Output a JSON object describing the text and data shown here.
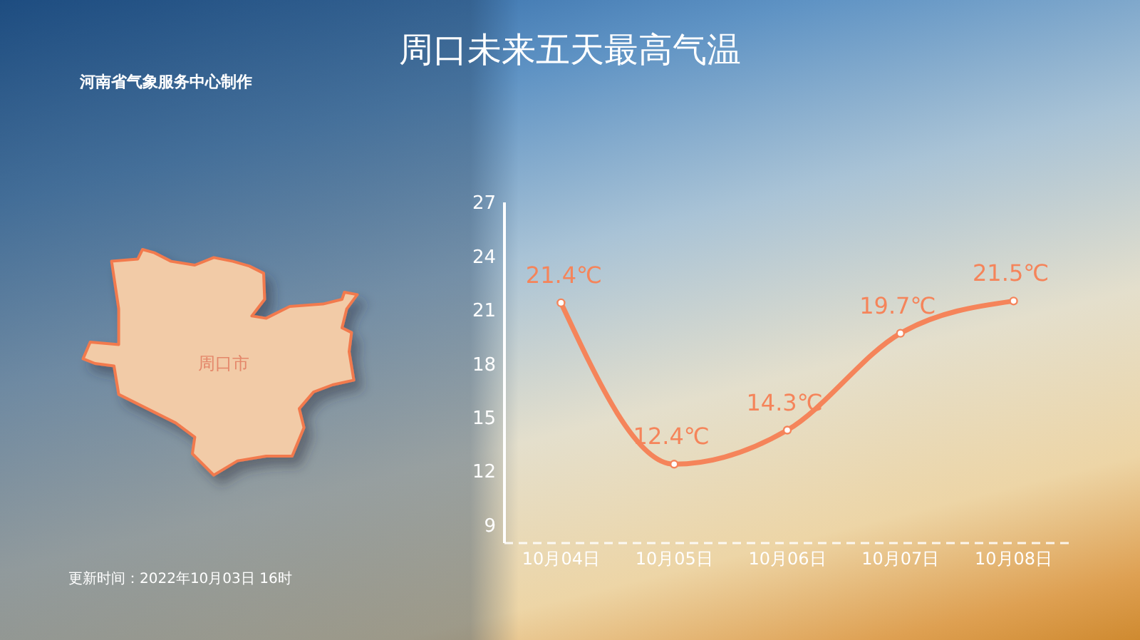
{
  "chart_data": {
    "type": "line",
    "title": "周口未来五天最高气温",
    "annotations": [
      "河南省气象服务中心制作",
      "更新时间：2022年10月03日 16时",
      "周口市"
    ],
    "categories": [
      "10月04日",
      "10月05日",
      "10月06日",
      "10月07日",
      "10月08日"
    ],
    "values": [
      21.4,
      12.4,
      14.3,
      19.7,
      21.5
    ],
    "value_labels": [
      "21.4℃",
      "12.4℃",
      "14.3℃",
      "19.7℃",
      "21.5℃"
    ],
    "color": "#f5845a",
    "marker": "circle",
    "ylim": [
      8,
      27
    ],
    "yticks": [
      9,
      12,
      15,
      18,
      21,
      24,
      27
    ]
  }
}
